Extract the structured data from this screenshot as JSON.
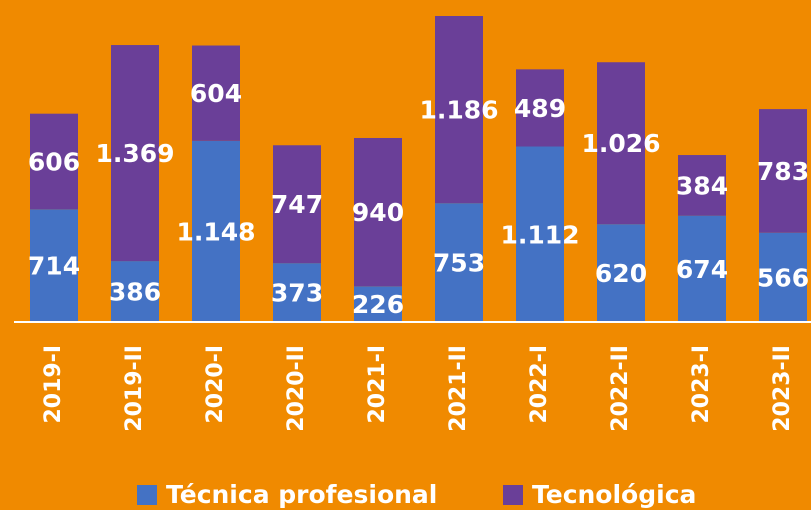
{
  "chart_data": {
    "type": "stacked_bar",
    "categories": [
      "2019-I",
      "2019-II",
      "2020-I",
      "2020-II",
      "2021-I",
      "2021-II",
      "2022-I",
      "2022-II",
      "2023-I",
      "2023-II"
    ],
    "series": [
      {
        "name": "Técnica profesional",
        "color": "#4472c4",
        "values": [
          714,
          386,
          1148,
          373,
          226,
          753,
          1112,
          620,
          674,
          566
        ],
        "value_labels": [
          "714",
          "386",
          "1.148",
          "373",
          "226",
          "753",
          "1.112",
          "620",
          "674",
          "566"
        ]
      },
      {
        "name": "Tecnológica",
        "color": "#6a3f98",
        "values": [
          606,
          1369,
          604,
          747,
          940,
          1186,
          489,
          1026,
          384,
          783
        ],
        "value_labels": [
          "606",
          "1.369",
          "604",
          "747",
          "940",
          "1.186",
          "489",
          "1.026",
          "384",
          "783"
        ]
      }
    ],
    "legend": "bottom"
  }
}
